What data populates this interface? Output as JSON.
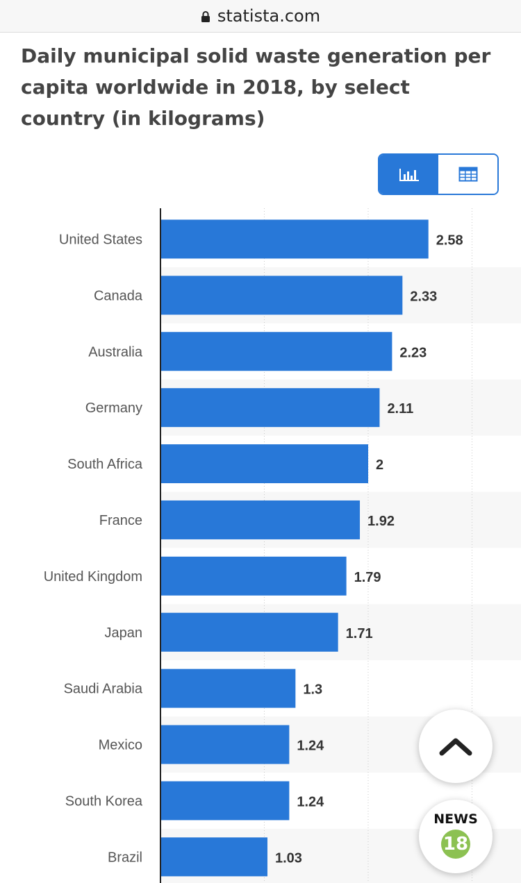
{
  "browser": {
    "url": "statista.com"
  },
  "page": {
    "title": "Daily municipal solid waste generation per capita worldwide in 2018, by select country (in kilograms)"
  },
  "view_toggle": {
    "active": "bar-chart",
    "options": [
      "bar-chart-icon",
      "table-icon"
    ]
  },
  "floating": {
    "news_label": "NEWS",
    "news_number": "18"
  },
  "colors": {
    "bar": "#2878d8",
    "accent": "#2878d8",
    "news_badge": "#8cc152"
  },
  "chart_data": {
    "type": "bar",
    "orientation": "horizontal",
    "title": "Daily municipal solid waste generation per capita worldwide in 2018, by select country (in kilograms)",
    "categories": [
      "United States",
      "Canada",
      "Australia",
      "Germany",
      "South Africa",
      "France",
      "United Kingdom",
      "Japan",
      "Saudi Arabia",
      "Mexico",
      "South Korea",
      "Brazil"
    ],
    "values": [
      2.58,
      2.33,
      2.23,
      2.11,
      2,
      1.92,
      1.79,
      1.71,
      1.3,
      1.24,
      1.24,
      1.03
    ],
    "value_labels": [
      "2.58",
      "2.33",
      "2.23",
      "2.11",
      "2",
      "1.92",
      "1.79",
      "1.71",
      "1.3",
      "1.24",
      "1.24",
      "1.03"
    ],
    "xlim": [
      0,
      3
    ],
    "grid": true,
    "gridlines": [
      1,
      2,
      3
    ]
  }
}
